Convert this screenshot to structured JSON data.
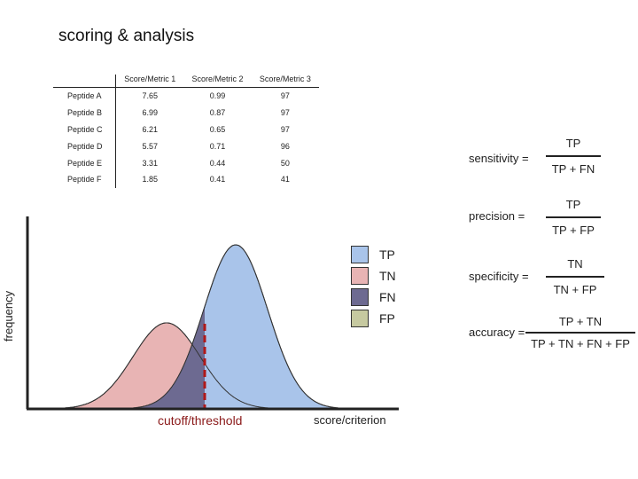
{
  "title": "scoring & analysis",
  "table": {
    "headers": [
      "",
      "Score/Metric 1",
      "Score/Metric 2",
      "Score/Metric 3"
    ],
    "rows": [
      {
        "name": "Peptide A",
        "m1": "7.65",
        "m2": "0.99",
        "m3": "97"
      },
      {
        "name": "Peptide B",
        "m1": "6.99",
        "m2": "0.87",
        "m3": "97"
      },
      {
        "name": "Peptide C",
        "m1": "6.21",
        "m2": "0.65",
        "m3": "97"
      },
      {
        "name": "Peptide D",
        "m1": "5.57",
        "m2": "0.71",
        "m3": "96"
      },
      {
        "name": "Peptide E",
        "m1": "3.31",
        "m2": "0.44",
        "m3": "50"
      },
      {
        "name": "Peptide F",
        "m1": "1.85",
        "m2": "0.41",
        "m3": "41"
      }
    ]
  },
  "plot": {
    "ylabel": "frequency",
    "xlabel": "score/criterion",
    "cutoff_label": "cutoff/threshold",
    "legend": [
      {
        "label": "TP",
        "color": "#a9c4ea"
      },
      {
        "label": "TN",
        "color": "#e8b4b4"
      },
      {
        "label": "FN",
        "color": "#6d6a91"
      },
      {
        "label": "FP",
        "color": "#c6c9a0"
      }
    ],
    "colors": {
      "positive": "#a9c4ea",
      "negative": "#e8b4b4",
      "fn": "#6d6a91",
      "fp": "#c6c9a0",
      "cutoff": "#b01818",
      "axis": "#222222"
    }
  },
  "formulas": {
    "sensitivity": {
      "label": "sensitivity =",
      "num": "TP",
      "den": "TP + FN"
    },
    "precision": {
      "label": "precision =",
      "num": "TP",
      "den": "TP + FP"
    },
    "specificity": {
      "label": "specificity =",
      "num": "TN",
      "den": "TN + FP"
    },
    "accuracy": {
      "label": "accuracy =",
      "num": "TP + TN",
      "den": "TP + TN + FN + FP"
    }
  }
}
